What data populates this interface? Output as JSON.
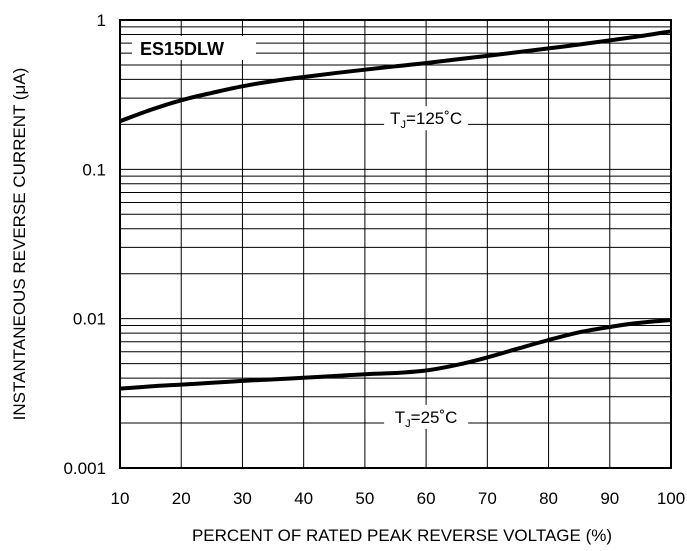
{
  "chart_data": {
    "type": "line",
    "title": "",
    "part_number": "ES15DLW",
    "xlabel": "PERCENT OF RATED PEAK REVERSE VOLTAGE (%)",
    "ylabel": "INSTANTANEOUS REVERSE CURRENT (μA)",
    "xlim": [
      10,
      100
    ],
    "ylim": [
      0.001,
      1
    ],
    "y_scale": "log",
    "grid": true,
    "x_ticks": [
      {
        "value": 10,
        "label": "10"
      },
      {
        "value": 20,
        "label": "20"
      },
      {
        "value": 30,
        "label": "30"
      },
      {
        "value": 40,
        "label": "40"
      },
      {
        "value": 50,
        "label": "50"
      },
      {
        "value": 60,
        "label": "60"
      },
      {
        "value": 70,
        "label": "70"
      },
      {
        "value": 80,
        "label": "80"
      },
      {
        "value": 90,
        "label": "90"
      },
      {
        "value": 100,
        "label": "100"
      }
    ],
    "y_ticks": [
      {
        "value": 1,
        "label": "1"
      },
      {
        "value": 0.1,
        "label": "0.1"
      },
      {
        "value": 0.01,
        "label": "0.01"
      },
      {
        "value": 0.001,
        "label": "0.001"
      }
    ],
    "series": [
      {
        "name": "TJ=125°C",
        "label_main": "T",
        "label_sub": "J",
        "label_rest": "=125˚C",
        "label_at": {
          "x": 60,
          "y": 0.22
        },
        "color": "#000000",
        "x": [
          10,
          15,
          20,
          25,
          30,
          35,
          40,
          45,
          50,
          55,
          60,
          65,
          70,
          75,
          80,
          85,
          90,
          95,
          100
        ],
        "y": [
          0.21,
          0.25,
          0.29,
          0.325,
          0.36,
          0.39,
          0.415,
          0.44,
          0.465,
          0.49,
          0.515,
          0.545,
          0.575,
          0.61,
          0.645,
          0.685,
          0.73,
          0.78,
          0.84
        ]
      },
      {
        "name": "TJ=25°C",
        "label_main": "T",
        "label_sub": "J",
        "label_rest": "=25˚C",
        "label_at": {
          "x": 60,
          "y": 0.0022
        },
        "color": "#000000",
        "x": [
          10,
          15,
          20,
          25,
          30,
          35,
          40,
          45,
          50,
          55,
          60,
          65,
          70,
          75,
          80,
          85,
          90,
          95,
          100
        ],
        "y": [
          0.0034,
          0.00352,
          0.00362,
          0.00372,
          0.00383,
          0.00392,
          0.00402,
          0.00413,
          0.00425,
          0.00433,
          0.0045,
          0.0049,
          0.0055,
          0.0063,
          0.0072,
          0.0081,
          0.0088,
          0.0094,
          0.0098
        ]
      }
    ]
  }
}
